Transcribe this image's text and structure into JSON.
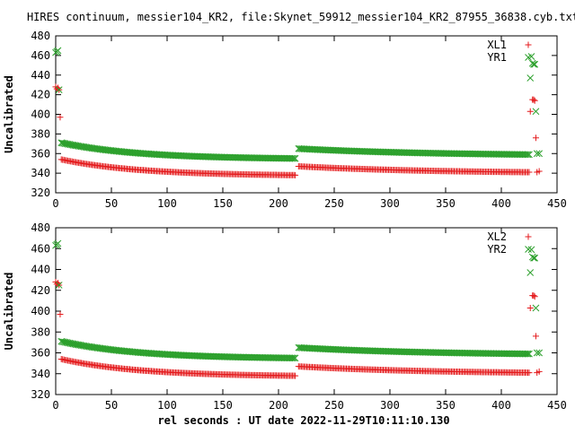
{
  "title": "HIRES continuum, messier104_KR2, file:Skynet_59912_messier104_KR2_87955_36838.cyb.txt",
  "xlabel": "rel seconds : UT date 2022-11-29T10:11:10.130",
  "colors": {
    "red": "#e41a1c",
    "green": "#2ca02c",
    "axis": "#000000"
  },
  "chart_data": [
    {
      "type": "scatter",
      "ylabel": "Uncalibrated",
      "xlim": [
        0,
        450
      ],
      "ylim": [
        320,
        480
      ],
      "xticks": [
        0,
        50,
        100,
        150,
        200,
        250,
        300,
        350,
        400,
        450
      ],
      "yticks": [
        320,
        340,
        360,
        380,
        400,
        420,
        440,
        460,
        480
      ],
      "legend_position": "top-right",
      "series": [
        {
          "name": "XL1",
          "color": "#e41a1c",
          "marker": "plus",
          "outliers": [
            [
              0,
              428
            ],
            [
              1,
              426
            ],
            [
              2,
              427
            ],
            [
              3,
              425
            ],
            [
              4,
              397
            ],
            [
              426,
              403
            ],
            [
              428,
              415
            ],
            [
              429,
              415
            ],
            [
              430,
              414
            ],
            [
              431,
              376
            ],
            [
              432,
              341
            ],
            [
              434,
              342
            ]
          ],
          "segments": [
            {
              "x": [
                5,
                215
              ],
              "shape": "decay",
              "y_start": 354,
              "y_end": 338,
              "tau": 70,
              "n": 175
            },
            {
              "x": [
                218,
                425
              ],
              "shape": "decay",
              "y_start": 347,
              "y_end": 341,
              "tau": 120,
              "n": 170
            }
          ]
        },
        {
          "name": "YR1",
          "color": "#2ca02c",
          "marker": "cross",
          "outliers": [
            [
              0,
              463
            ],
            [
              1,
              464
            ],
            [
              2,
              465
            ],
            [
              3,
              425
            ],
            [
              426,
              437
            ],
            [
              427,
              459
            ],
            [
              428,
              452
            ],
            [
              429,
              451
            ],
            [
              430,
              451
            ],
            [
              431,
              403
            ],
            [
              432,
              360
            ],
            [
              434,
              360
            ]
          ],
          "segments": [
            {
              "x": [
                5,
                215
              ],
              "shape": "decay",
              "y_start": 371,
              "y_end": 355,
              "tau": 70,
              "n": 175
            },
            {
              "x": [
                218,
                425
              ],
              "shape": "decay",
              "y_start": 365,
              "y_end": 359,
              "tau": 120,
              "n": 170
            }
          ]
        }
      ]
    },
    {
      "type": "scatter",
      "ylabel": "Uncalibrated",
      "xlim": [
        0,
        450
      ],
      "ylim": [
        320,
        480
      ],
      "xticks": [
        0,
        50,
        100,
        150,
        200,
        250,
        300,
        350,
        400,
        450
      ],
      "yticks": [
        320,
        340,
        360,
        380,
        400,
        420,
        440,
        460,
        480
      ],
      "legend_position": "top-right",
      "series": [
        {
          "name": "XL2",
          "color": "#e41a1c",
          "marker": "plus",
          "outliers": [
            [
              0,
              428
            ],
            [
              1,
              426
            ],
            [
              2,
              427
            ],
            [
              3,
              425
            ],
            [
              4,
              397
            ],
            [
              426,
              403
            ],
            [
              428,
              415
            ],
            [
              429,
              415
            ],
            [
              430,
              414
            ],
            [
              431,
              376
            ],
            [
              432,
              341
            ],
            [
              434,
              342
            ]
          ],
          "segments": [
            {
              "x": [
                5,
                215
              ],
              "shape": "decay",
              "y_start": 354,
              "y_end": 338,
              "tau": 70,
              "n": 175
            },
            {
              "x": [
                218,
                425
              ],
              "shape": "decay",
              "y_start": 347,
              "y_end": 341,
              "tau": 120,
              "n": 170
            }
          ]
        },
        {
          "name": "YR2",
          "color": "#2ca02c",
          "marker": "cross",
          "outliers": [
            [
              0,
              463
            ],
            [
              1,
              464
            ],
            [
              2,
              465
            ],
            [
              3,
              425
            ],
            [
              426,
              437
            ],
            [
              427,
              459
            ],
            [
              428,
              452
            ],
            [
              429,
              451
            ],
            [
              430,
              451
            ],
            [
              431,
              403
            ],
            [
              432,
              360
            ],
            [
              434,
              360
            ]
          ],
          "segments": [
            {
              "x": [
                5,
                215
              ],
              "shape": "decay",
              "y_start": 371,
              "y_end": 355,
              "tau": 70,
              "n": 175
            },
            {
              "x": [
                218,
                425
              ],
              "shape": "decay",
              "y_start": 365,
              "y_end": 359,
              "tau": 120,
              "n": 170
            }
          ]
        }
      ]
    }
  ]
}
